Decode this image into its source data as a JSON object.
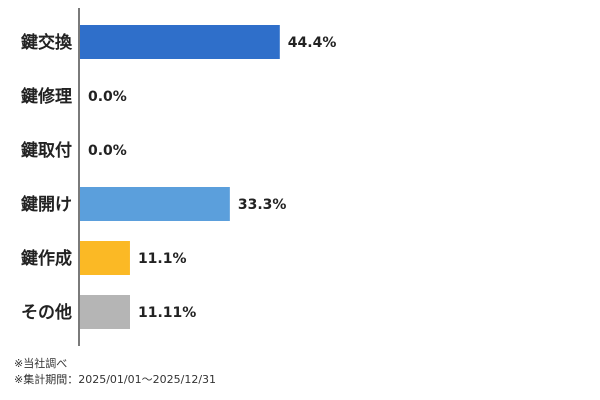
{
  "chart_data": {
    "type": "bar",
    "orientation": "horizontal",
    "categories": [
      "鍵交換",
      "鍵修理",
      "鍵取付",
      "鍵開け",
      "鍵作成",
      "その他"
    ],
    "values": [
      44.4,
      0.0,
      0.0,
      33.3,
      11.1,
      11.11
    ],
    "value_labels": [
      "44.4%",
      "0.0%",
      "0.0%",
      "33.3%",
      "11.1%",
      "11.11%"
    ],
    "colors": [
      "#2f6fca",
      "#2f6fca",
      "#2f6fca",
      "#5b9fdc",
      "#fbb925",
      "#b5b5b5"
    ],
    "title": "",
    "xlabel": "",
    "ylabel": "",
    "xlim": [
      0,
      100
    ],
    "grid": false,
    "legend": "none"
  },
  "notes": {
    "source": "※当社調べ",
    "period": "※集計期間：2025/01/01～2025/12/31"
  }
}
